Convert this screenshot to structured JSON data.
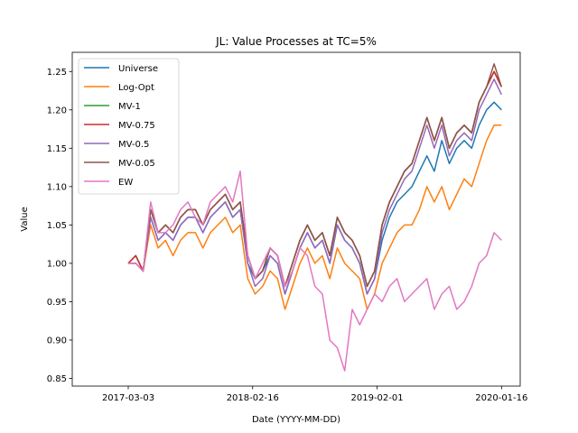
{
  "chart_data": {
    "type": "line",
    "title": "JL: Value Processes at TC=5%",
    "xlabel": "Date (YYYY-MM-DD)",
    "ylabel": "Value",
    "ylim": [
      0.84,
      1.275
    ],
    "xlim": [
      -0.15,
      1.05
    ],
    "grid": false,
    "legend_position": "top-left",
    "x_ticks": [
      {
        "value": 0.0,
        "label": "2017-03-03"
      },
      {
        "value": 0.3333,
        "label": "2018-02-16"
      },
      {
        "value": 0.6667,
        "label": "2019-02-01"
      },
      {
        "value": 1.0,
        "label": "2020-01-16"
      }
    ],
    "y_ticks": [
      0.85,
      0.9,
      0.95,
      1.0,
      1.05,
      1.1,
      1.15,
      1.2,
      1.25
    ],
    "y_tick_labels": [
      "0.85",
      "0.90",
      "0.95",
      "1.00",
      "1.05",
      "1.10",
      "1.15",
      "1.20",
      "1.25"
    ],
    "series": [
      {
        "name": "Universe",
        "color": "#1f77b4",
        "x": [
          0.0,
          0.02,
          0.04,
          0.06,
          0.08,
          0.1,
          0.12,
          0.14,
          0.16,
          0.18,
          0.2,
          0.22,
          0.24,
          0.26,
          0.28,
          0.3,
          0.32,
          0.34,
          0.36,
          0.38,
          0.4,
          0.42,
          0.44,
          0.46,
          0.48,
          0.5,
          0.52,
          0.54,
          0.56,
          0.58,
          0.6,
          0.62,
          0.64,
          0.66,
          0.68,
          0.7,
          0.72,
          0.74,
          0.76,
          0.78,
          0.8,
          0.82,
          0.84,
          0.86,
          0.88,
          0.9,
          0.92,
          0.94,
          0.96,
          0.98,
          1.0
        ],
        "y": [
          1.0,
          1.01,
          0.99,
          1.06,
          1.03,
          1.04,
          1.03,
          1.05,
          1.06,
          1.06,
          1.04,
          1.06,
          1.07,
          1.08,
          1.06,
          1.07,
          1.0,
          0.98,
          0.99,
          1.01,
          1.0,
          0.96,
          0.99,
          1.02,
          1.04,
          1.02,
          1.03,
          1.0,
          1.05,
          1.03,
          1.02,
          1.0,
          0.96,
          0.98,
          1.03,
          1.06,
          1.08,
          1.09,
          1.1,
          1.12,
          1.14,
          1.12,
          1.16,
          1.13,
          1.15,
          1.16,
          1.15,
          1.18,
          1.2,
          1.21,
          1.2
        ]
      },
      {
        "name": "Log-Opt",
        "color": "#ff7f0e",
        "x": [
          0.0,
          0.02,
          0.04,
          0.06,
          0.08,
          0.1,
          0.12,
          0.14,
          0.16,
          0.18,
          0.2,
          0.22,
          0.24,
          0.26,
          0.28,
          0.3,
          0.32,
          0.34,
          0.36,
          0.38,
          0.4,
          0.42,
          0.44,
          0.46,
          0.48,
          0.5,
          0.52,
          0.54,
          0.56,
          0.58,
          0.6,
          0.62,
          0.64,
          0.66,
          0.68,
          0.7,
          0.72,
          0.74,
          0.76,
          0.78,
          0.8,
          0.82,
          0.84,
          0.86,
          0.88,
          0.9,
          0.92,
          0.94,
          0.96,
          0.98,
          1.0
        ],
        "y": [
          1.0,
          1.0,
          0.99,
          1.05,
          1.02,
          1.03,
          1.01,
          1.03,
          1.04,
          1.04,
          1.02,
          1.04,
          1.05,
          1.06,
          1.04,
          1.05,
          0.98,
          0.96,
          0.97,
          0.99,
          0.98,
          0.94,
          0.97,
          1.0,
          1.02,
          1.0,
          1.01,
          0.98,
          1.02,
          1.0,
          0.99,
          0.98,
          0.94,
          0.96,
          1.0,
          1.02,
          1.04,
          1.05,
          1.05,
          1.07,
          1.1,
          1.08,
          1.1,
          1.07,
          1.09,
          1.11,
          1.1,
          1.13,
          1.16,
          1.18,
          1.18
        ]
      },
      {
        "name": "MV-1",
        "color": "#2ca02c",
        "x": [
          0.0,
          0.02,
          0.04,
          0.06,
          0.08,
          0.1,
          0.12,
          0.14,
          0.16,
          0.18,
          0.2,
          0.22,
          0.24,
          0.26,
          0.28,
          0.3,
          0.32,
          0.34,
          0.36,
          0.38,
          0.4,
          0.42,
          0.44,
          0.46,
          0.48,
          0.5,
          0.52,
          0.54,
          0.56,
          0.58,
          0.6,
          0.62,
          0.64,
          0.66,
          0.68,
          0.7,
          0.72,
          0.74,
          0.76,
          0.78,
          0.8,
          0.82,
          0.84,
          0.86,
          0.88,
          0.9,
          0.92,
          0.94,
          0.96,
          0.98,
          1.0
        ],
        "y": [
          1.0,
          1.01,
          0.99,
          1.07,
          1.04,
          1.05,
          1.04,
          1.06,
          1.07,
          1.07,
          1.05,
          1.07,
          1.08,
          1.09,
          1.07,
          1.08,
          1.01,
          0.98,
          0.99,
          1.02,
          1.01,
          0.97,
          1.0,
          1.03,
          1.05,
          1.03,
          1.04,
          1.01,
          1.06,
          1.04,
          1.03,
          1.01,
          0.97,
          0.99,
          1.05,
          1.08,
          1.1,
          1.12,
          1.13,
          1.16,
          1.19,
          1.16,
          1.19,
          1.15,
          1.17,
          1.18,
          1.17,
          1.21,
          1.23,
          1.25,
          1.23
        ]
      },
      {
        "name": "MV-0.75",
        "color": "#d62728",
        "x": [
          0.0,
          0.02,
          0.04,
          0.06,
          0.08,
          0.1,
          0.12,
          0.14,
          0.16,
          0.18,
          0.2,
          0.22,
          0.24,
          0.26,
          0.28,
          0.3,
          0.32,
          0.34,
          0.36,
          0.38,
          0.4,
          0.42,
          0.44,
          0.46,
          0.48,
          0.5,
          0.52,
          0.54,
          0.56,
          0.58,
          0.6,
          0.62,
          0.64,
          0.66,
          0.68,
          0.7,
          0.72,
          0.74,
          0.76,
          0.78,
          0.8,
          0.82,
          0.84,
          0.86,
          0.88,
          0.9,
          0.92,
          0.94,
          0.96,
          0.98,
          1.0
        ],
        "y": [
          1.0,
          1.01,
          0.99,
          1.07,
          1.04,
          1.05,
          1.04,
          1.06,
          1.07,
          1.07,
          1.05,
          1.07,
          1.08,
          1.09,
          1.07,
          1.08,
          1.01,
          0.98,
          0.99,
          1.02,
          1.01,
          0.97,
          1.0,
          1.03,
          1.05,
          1.03,
          1.04,
          1.01,
          1.06,
          1.04,
          1.03,
          1.01,
          0.97,
          0.99,
          1.05,
          1.08,
          1.1,
          1.12,
          1.13,
          1.16,
          1.19,
          1.16,
          1.19,
          1.15,
          1.17,
          1.18,
          1.17,
          1.21,
          1.23,
          1.25,
          1.23
        ]
      },
      {
        "name": "MV-0.5",
        "color": "#9467bd",
        "x": [
          0.0,
          0.02,
          0.04,
          0.06,
          0.08,
          0.1,
          0.12,
          0.14,
          0.16,
          0.18,
          0.2,
          0.22,
          0.24,
          0.26,
          0.28,
          0.3,
          0.32,
          0.34,
          0.36,
          0.38,
          0.4,
          0.42,
          0.44,
          0.46,
          0.48,
          0.5,
          0.52,
          0.54,
          0.56,
          0.58,
          0.6,
          0.62,
          0.64,
          0.66,
          0.68,
          0.7,
          0.72,
          0.74,
          0.76,
          0.78,
          0.8,
          0.82,
          0.84,
          0.86,
          0.88,
          0.9,
          0.92,
          0.94,
          0.96,
          0.98,
          1.0
        ],
        "y": [
          1.0,
          1.0,
          0.99,
          1.06,
          1.03,
          1.04,
          1.03,
          1.05,
          1.06,
          1.06,
          1.04,
          1.06,
          1.07,
          1.08,
          1.06,
          1.07,
          1.0,
          0.97,
          0.98,
          1.01,
          1.0,
          0.96,
          0.99,
          1.02,
          1.04,
          1.02,
          1.03,
          1.0,
          1.05,
          1.03,
          1.02,
          1.0,
          0.96,
          0.98,
          1.04,
          1.07,
          1.09,
          1.11,
          1.12,
          1.15,
          1.18,
          1.15,
          1.18,
          1.14,
          1.16,
          1.17,
          1.16,
          1.2,
          1.22,
          1.24,
          1.22
        ]
      },
      {
        "name": "MV-0.05",
        "color": "#8c564b",
        "x": [
          0.0,
          0.02,
          0.04,
          0.06,
          0.08,
          0.1,
          0.12,
          0.14,
          0.16,
          0.18,
          0.2,
          0.22,
          0.24,
          0.26,
          0.28,
          0.3,
          0.32,
          0.34,
          0.36,
          0.38,
          0.4,
          0.42,
          0.44,
          0.46,
          0.48,
          0.5,
          0.52,
          0.54,
          0.56,
          0.58,
          0.6,
          0.62,
          0.64,
          0.66,
          0.68,
          0.7,
          0.72,
          0.74,
          0.76,
          0.78,
          0.8,
          0.82,
          0.84,
          0.86,
          0.88,
          0.9,
          0.92,
          0.94,
          0.96,
          0.98,
          1.0
        ],
        "y": [
          1.0,
          1.0,
          0.99,
          1.07,
          1.04,
          1.05,
          1.04,
          1.06,
          1.07,
          1.07,
          1.05,
          1.07,
          1.08,
          1.09,
          1.07,
          1.08,
          1.01,
          0.98,
          0.99,
          1.02,
          1.01,
          0.97,
          1.0,
          1.03,
          1.05,
          1.03,
          1.04,
          1.01,
          1.06,
          1.04,
          1.03,
          1.01,
          0.97,
          0.99,
          1.05,
          1.08,
          1.1,
          1.12,
          1.13,
          1.16,
          1.19,
          1.16,
          1.19,
          1.15,
          1.17,
          1.18,
          1.17,
          1.21,
          1.23,
          1.26,
          1.23
        ]
      },
      {
        "name": "EW",
        "color": "#e377c2",
        "x": [
          0.0,
          0.02,
          0.04,
          0.06,
          0.08,
          0.1,
          0.12,
          0.14,
          0.16,
          0.18,
          0.2,
          0.22,
          0.24,
          0.26,
          0.28,
          0.3,
          0.32,
          0.34,
          0.36,
          0.38,
          0.4,
          0.42,
          0.44,
          0.46,
          0.48,
          0.5,
          0.52,
          0.54,
          0.56,
          0.58,
          0.6,
          0.62,
          0.64,
          0.66,
          0.68,
          0.7,
          0.72,
          0.74,
          0.76,
          0.78,
          0.8,
          0.82,
          0.84,
          0.86,
          0.88,
          0.9,
          0.92,
          0.94,
          0.96,
          0.98,
          1.0
        ],
        "y": [
          1.0,
          1.0,
          0.99,
          1.08,
          1.04,
          1.04,
          1.05,
          1.07,
          1.08,
          1.06,
          1.05,
          1.08,
          1.09,
          1.1,
          1.08,
          1.12,
          1.01,
          0.98,
          1.0,
          1.02,
          1.01,
          0.97,
          0.99,
          1.02,
          1.01,
          0.97,
          0.96,
          0.9,
          0.89,
          0.86,
          0.94,
          0.92,
          0.94,
          0.96,
          0.95,
          0.97,
          0.98,
          0.95,
          0.96,
          0.97,
          0.98,
          0.94,
          0.96,
          0.97,
          0.94,
          0.95,
          0.97,
          1.0,
          1.01,
          1.04,
          1.03
        ]
      }
    ]
  }
}
